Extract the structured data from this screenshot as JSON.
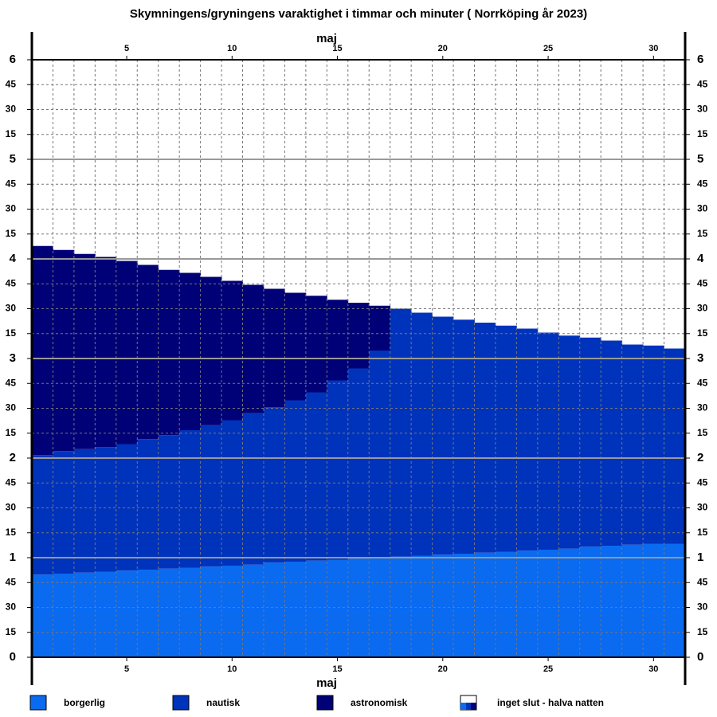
{
  "chart_data": {
    "type": "stacked_bar",
    "title": "Skymningens/gryningens varaktighet i timmar och minuter  ( Norrköping år 2023)",
    "xlabel": "maj",
    "x": [
      1,
      2,
      3,
      4,
      5,
      6,
      7,
      8,
      9,
      10,
      11,
      12,
      13,
      14,
      15,
      16,
      17,
      18,
      19,
      20,
      21,
      22,
      23,
      24,
      25,
      26,
      27,
      28,
      29,
      30,
      31
    ],
    "xlim": [
      0.5,
      31.5
    ],
    "xticks": [
      5,
      10,
      15,
      20,
      25,
      30
    ],
    "ylim": [
      0,
      6
    ],
    "yticks": [
      0,
      {
        "value": 0.25,
        "label": "15"
      },
      {
        "value": 0.5,
        "label": "30"
      },
      {
        "value": 0.75,
        "label": "45"
      },
      1,
      {
        "value": 1.25,
        "label": "15"
      },
      {
        "value": 1.5,
        "label": "30"
      },
      {
        "value": 1.75,
        "label": "45"
      },
      2,
      {
        "value": 2.25,
        "label": "15"
      },
      {
        "value": 2.5,
        "label": "30"
      },
      {
        "value": 2.75,
        "label": "45"
      },
      3,
      {
        "value": 3.25,
        "label": "15"
      },
      {
        "value": 3.5,
        "label": "30"
      },
      {
        "value": 3.75,
        "label": "45"
      },
      4,
      {
        "value": 4.25,
        "label": "15"
      },
      {
        "value": 4.5,
        "label": "30"
      },
      {
        "value": 4.75,
        "label": "45"
      },
      5,
      {
        "value": 5.25,
        "label": "15"
      },
      {
        "value": 5.5,
        "label": "30"
      },
      {
        "value": 5.75,
        "label": "45"
      },
      6
    ],
    "grid": true,
    "series": [
      {
        "name": "borgerlig",
        "color": "#0a6af0",
        "values": [
          0.83,
          0.84,
          0.85,
          0.86,
          0.87,
          0.88,
          0.89,
          0.9,
          0.91,
          0.92,
          0.93,
          0.95,
          0.96,
          0.97,
          0.98,
          0.99,
          1.0,
          1.01,
          1.02,
          1.03,
          1.04,
          1.05,
          1.06,
          1.07,
          1.08,
          1.09,
          1.11,
          1.12,
          1.13,
          1.14,
          1.14
        ]
      },
      {
        "name": "nautisk",
        "color": "#0033bb",
        "values": [
          1.2,
          1.23,
          1.24,
          1.25,
          1.27,
          1.31,
          1.34,
          1.38,
          1.42,
          1.46,
          1.52,
          1.56,
          1.62,
          1.69,
          1.8,
          1.91,
          2.08,
          2.49,
          2.44,
          2.39,
          2.35,
          2.31,
          2.27,
          2.23,
          2.18,
          2.14,
          2.1,
          2.06,
          2.01,
          1.99,
          1.96
        ]
      },
      {
        "name": "astronomisk",
        "color": "#000077",
        "values": [
          2.1,
          2.02,
          1.96,
          1.91,
          1.84,
          1.75,
          1.66,
          1.58,
          1.49,
          1.4,
          1.29,
          1.19,
          1.08,
          0.97,
          0.81,
          0.66,
          0.45,
          null,
          null,
          null,
          null,
          null,
          null,
          null,
          null,
          null,
          null,
          null,
          null,
          null,
          null
        ]
      }
    ],
    "legend_note": "inget slut - halva natten"
  }
}
